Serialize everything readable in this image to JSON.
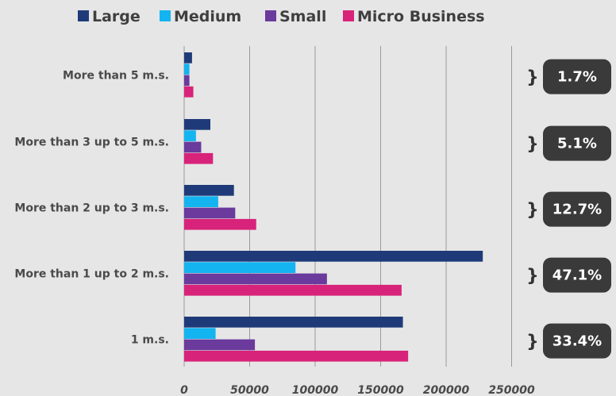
{
  "chart_data": {
    "type": "bar",
    "orientation": "horizontal",
    "categories": [
      "More than 5 m.s.",
      "More than 3 up to 5 m.s.",
      "More than 2 up to 3 m.s.",
      "More than 1 up to 2 m.s.",
      "1 m.s."
    ],
    "series": [
      {
        "name": "Large",
        "color": "#1f3a78",
        "values": [
          6000,
          20000,
          38000,
          228000,
          167000
        ]
      },
      {
        "name": "Medium",
        "color": "#14b4f0",
        "values": [
          4000,
          9000,
          26000,
          85000,
          24000
        ]
      },
      {
        "name": "Small",
        "color": "#6a3a9c",
        "values": [
          4000,
          13000,
          39000,
          109000,
          54000
        ]
      },
      {
        "name": "Micro Business",
        "color": "#d8237a",
        "values": [
          7000,
          22000,
          55000,
          166000,
          171000
        ]
      }
    ],
    "share_labels": [
      "1.7%",
      "5.1%",
      "12.7%",
      "47.1%",
      "33.4%"
    ],
    "xticks": [
      0,
      50000,
      100000,
      150000,
      200000,
      250000
    ],
    "xlim": [
      0,
      250000
    ],
    "grid": "vertical",
    "legend_position": "top",
    "badge_color": "#3a3a3a",
    "title": "",
    "xlabel": "",
    "ylabel": ""
  }
}
